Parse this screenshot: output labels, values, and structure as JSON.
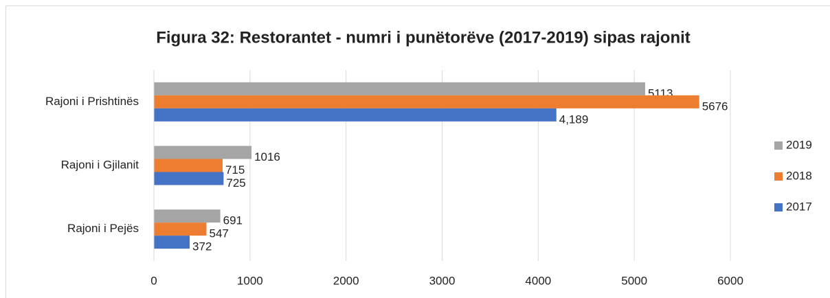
{
  "chart_data": {
    "type": "hbar",
    "title": "Figura 32: Restorantet - numri i punëtorëve (2017-2019) sipas rajonit",
    "categories": [
      "Rajoni i Prishtinës",
      "Rajoni i Gjilanit",
      "Rajoni i Pejës"
    ],
    "series": [
      {
        "name": "2019",
        "color": "#a5a5a5",
        "values": [
          5113,
          1016,
          691
        ]
      },
      {
        "name": "2018",
        "color": "#ed7d31",
        "values": [
          5676,
          715,
          547
        ]
      },
      {
        "name": "2017",
        "color": "#4472c4",
        "values": [
          4189,
          725,
          372
        ],
        "value_labels": [
          "4,189",
          "725",
          "372"
        ]
      }
    ],
    "xlim": [
      0,
      6000
    ],
    "xticks": [
      0,
      1000,
      2000,
      3000,
      4000,
      5000,
      6000
    ],
    "grid": true,
    "legend": "right"
  }
}
